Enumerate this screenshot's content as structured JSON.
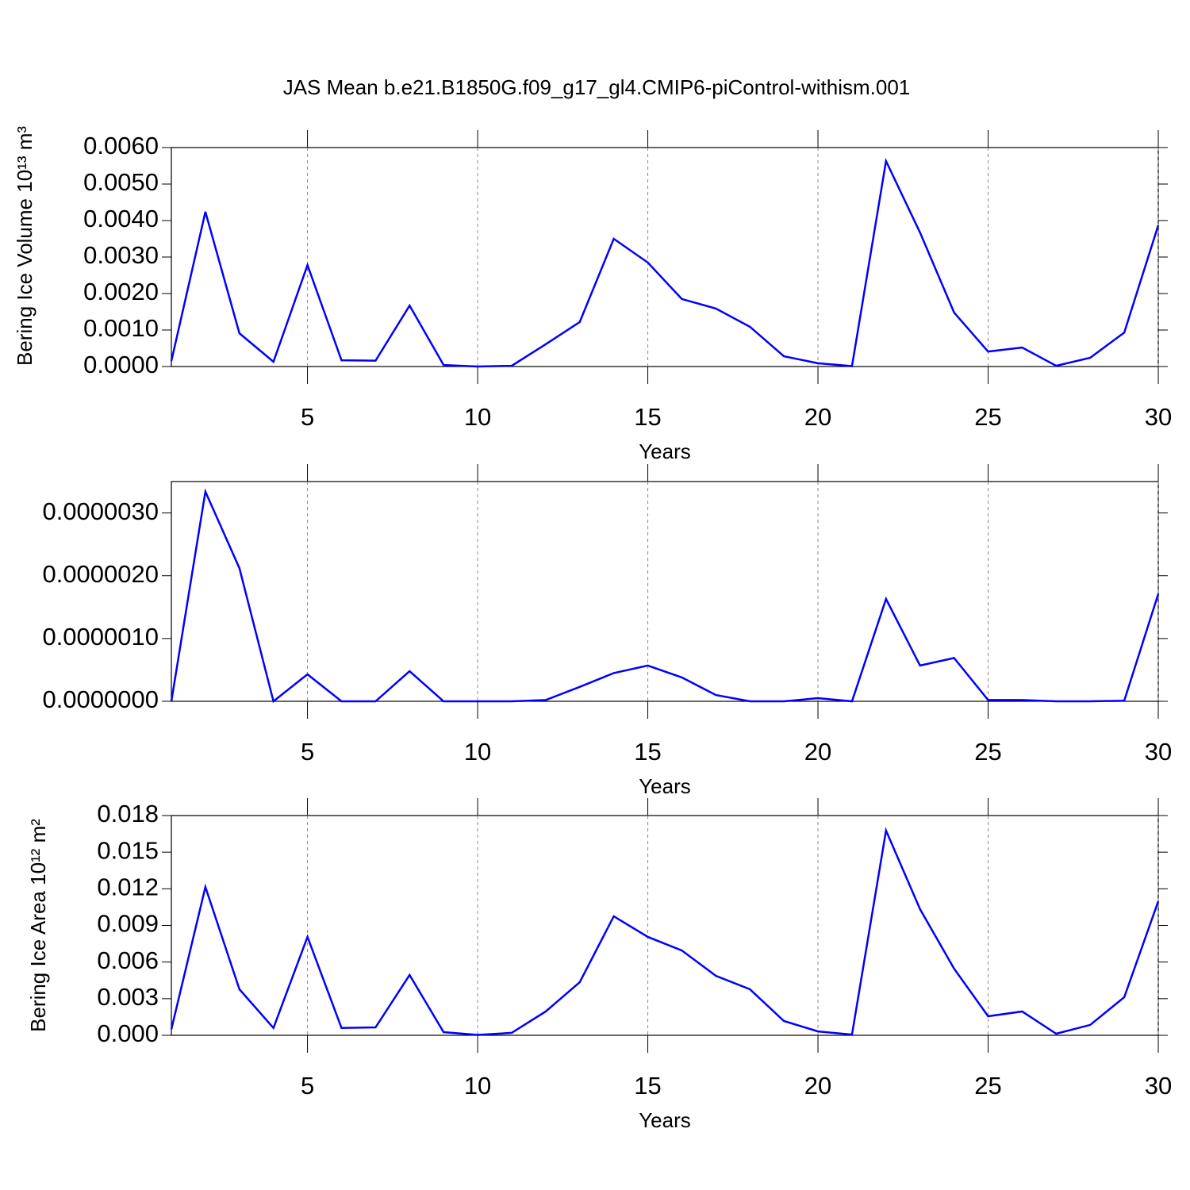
{
  "chart_data": [
    {
      "type": "line",
      "title": "JAS Mean b.e21.B1850G.f09_g17_gl4.CMIP6-piControl-withism.001",
      "ylabel": "Bering Ice Volume 10¹³ m³",
      "xlabel": "Years",
      "color": "#0000ff",
      "xgrid": true,
      "x": [
        1,
        2,
        3,
        4,
        5,
        6,
        7,
        8,
        9,
        10,
        11,
        12,
        13,
        14,
        15,
        16,
        17,
        18,
        19,
        20,
        21,
        22,
        23,
        24,
        25,
        26,
        27,
        28,
        29,
        30
      ],
      "values": [
        0.00015,
        0.00424,
        0.00091,
        0.00013,
        0.00278,
        0.00017,
        0.00016,
        0.00167,
        4e-05,
        0,
        2e-05,
        0.00061,
        0.00122,
        0.0035,
        0.00285,
        0.00185,
        0.00159,
        0.00109,
        0.00028,
        9e-05,
        1e-05,
        0.00563,
        0.00367,
        0.00148,
        0.00041,
        0.00052,
        2e-05,
        0.00024,
        0.00093,
        0.00387
      ],
      "xlim": [
        1,
        30
      ],
      "xticks": [
        5,
        10,
        15,
        20,
        25,
        30
      ],
      "ylim": [
        0,
        0.006
      ],
      "yticks": [
        {
          "value": 0,
          "label": "0.0000"
        },
        {
          "value": 0.001,
          "label": "0.0010"
        },
        {
          "value": 0.002,
          "label": "0.0020"
        },
        {
          "value": 0.003,
          "label": "0.0030"
        },
        {
          "value": 0.004,
          "label": "0.0040"
        },
        {
          "value": 0.005,
          "label": "0.0050"
        },
        {
          "value": 0.006,
          "label": "0.0060"
        }
      ]
    },
    {
      "type": "line",
      "xlabel": "Years",
      "color": "#0000ff",
      "xgrid": true,
      "x": [
        1,
        2,
        3,
        4,
        5,
        6,
        7,
        8,
        9,
        10,
        11,
        12,
        13,
        14,
        15,
        16,
        17,
        18,
        19,
        20,
        21,
        22,
        23,
        24,
        25,
        26,
        27,
        28,
        29,
        30
      ],
      "values": [
        0,
        3.34e-06,
        2.12e-06,
        0,
        4.3e-07,
        0,
        0,
        4.8e-07,
        0,
        0,
        0,
        2e-08,
        2.3e-07,
        4.5e-07,
        5.7e-07,
        3.8e-07,
        1e-07,
        0,
        0,
        5e-08,
        0,
        1.63e-06,
        5.7e-07,
        6.9e-07,
        2e-08,
        2e-08,
        0,
        0,
        1e-08,
        1.71e-06
      ],
      "xlim": [
        1,
        30
      ],
      "xticks": [
        5,
        10,
        15,
        20,
        25,
        30
      ],
      "ylim": [
        0,
        3.5e-06
      ],
      "yticks": [
        {
          "value": 0,
          "label": "0.0000000"
        },
        {
          "value": 1e-06,
          "label": "0.0000010"
        },
        {
          "value": 2e-06,
          "label": "0.0000020"
        },
        {
          "value": 3e-06,
          "label": "0.0000030"
        }
      ]
    },
    {
      "type": "line",
      "ylabel": "Bering Ice Area 10¹² m²",
      "xlabel": "Years",
      "color": "#0000ff",
      "xgrid": true,
      "x": [
        1,
        2,
        3,
        4,
        5,
        6,
        7,
        8,
        9,
        10,
        11,
        12,
        13,
        14,
        15,
        16,
        17,
        18,
        19,
        20,
        21,
        22,
        23,
        24,
        25,
        26,
        27,
        28,
        29,
        30
      ],
      "values": [
        0.0005,
        0.01215,
        0.00377,
        0.0006,
        0.00806,
        0.0006,
        0.00065,
        0.00494,
        0.00026,
        3e-05,
        0.0002,
        0.00195,
        0.00435,
        0.00975,
        0.00806,
        0.00695,
        0.00487,
        0.00377,
        0.00117,
        0.00032,
        6e-05,
        0.01677,
        0.01033,
        0.00546,
        0.00156,
        0.00195,
        0.00013,
        0.00085,
        0.00312,
        0.01098
      ],
      "xlim": [
        1,
        30
      ],
      "xticks": [
        5,
        10,
        15,
        20,
        25,
        30
      ],
      "ylim": [
        0,
        0.018
      ],
      "yticks": [
        {
          "value": 0,
          "label": "0.000"
        },
        {
          "value": 0.003,
          "label": "0.003"
        },
        {
          "value": 0.006,
          "label": "0.006"
        },
        {
          "value": 0.009,
          "label": "0.009"
        },
        {
          "value": 0.012,
          "label": "0.012"
        },
        {
          "value": 0.015,
          "label": "0.015"
        },
        {
          "value": 0.018,
          "label": "0.018"
        }
      ]
    }
  ]
}
